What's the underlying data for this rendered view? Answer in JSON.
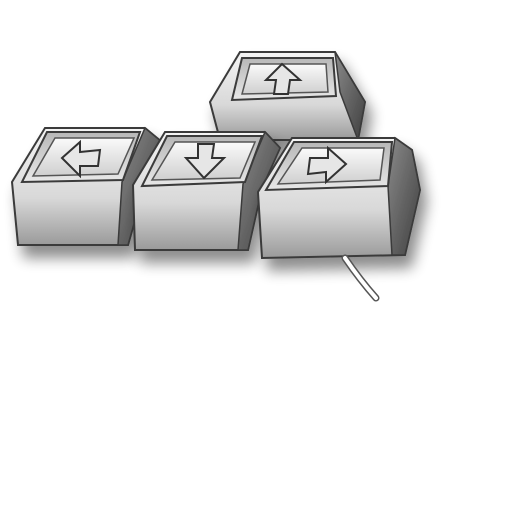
{
  "artwork": {
    "subject": "arrow-keys-keycaps",
    "keys": [
      {
        "name": "up",
        "arrow_icon": "arrow-up-icon"
      },
      {
        "name": "left",
        "arrow_icon": "arrow-left-icon"
      },
      {
        "name": "down",
        "arrow_icon": "arrow-down-icon"
      },
      {
        "name": "right",
        "arrow_icon": "arrow-right-icon"
      }
    ],
    "colors": {
      "keycap_light": "#efefef",
      "keycap_mid": "#c9c9c9",
      "keycap_dark": "#6a6a6a",
      "outline": "#3a3a3a",
      "background": "#ffffff"
    }
  },
  "caption": {
    "line1": "",
    "line2": ""
  }
}
